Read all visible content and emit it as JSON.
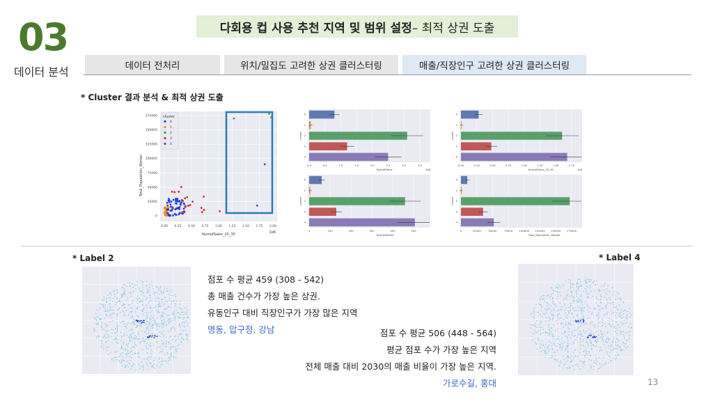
{
  "header": {
    "number": "03",
    "section": "데이터 분석",
    "title_bold": "다회용 컵 사용 추천 지역 및 범위 설정",
    "title_rest": " – 최적 상권 도출"
  },
  "tabs": [
    {
      "label": "데이터 전처리"
    },
    {
      "label": "위치/밀집도 고려한 상권 클러스터링"
    },
    {
      "label": "매출/직장인구 고려한 상권 클러스터링"
    }
  ],
  "subtitle": "* Cluster 결과 분석 & 최적 상권 도출",
  "colors": {
    "c0": "#1f3fd9",
    "c1": "#f28a1c",
    "c2": "#2ea42e",
    "c3": "#d62424",
    "c4": "#5b3fb5",
    "highlight": "#2a7ab5"
  },
  "bar_colors": [
    "#5f79b0",
    "#d98a4a",
    "#5aa06a",
    "#c15858",
    "#8a7ab8"
  ],
  "scatter": {
    "legend_title": "cluster",
    "legend_items": [
      "0",
      "1",
      "2",
      "3",
      "4"
    ],
    "ylabel": "Total_Population_Worker",
    "xlabel": "NumofSales_20_30",
    "offset": "1e6",
    "yticks": [
      "175000",
      "150000",
      "125000",
      "100000",
      "75000",
      "50000",
      "25000",
      "0"
    ],
    "xticks": [
      "0.00",
      "0.25",
      "0.50",
      "0.75",
      "1.00",
      "1.25",
      "1.50",
      "1.75",
      "2.00"
    ]
  },
  "bars": [
    {
      "xlabel": "NumofSales",
      "offset": "1e8",
      "xticks": [
        "0.0",
        "0.5",
        "1.0",
        "1.5",
        "2.0",
        "2.5",
        "3.0",
        "3.5"
      ],
      "values": [
        0.8,
        0.05,
        3.1,
        1.2,
        2.5
      ],
      "xmax": 3.7
    },
    {
      "xlabel": "NumofSales_20_30",
      "offset": "1e6",
      "xticks": [
        "0.00",
        "0.25",
        "0.50",
        "0.75",
        "1.00",
        "1.25",
        "1.50",
        "1.75"
      ],
      "values": [
        0.28,
        0.01,
        1.6,
        0.48,
        1.68
      ],
      "xmax": 1.85
    },
    {
      "xlabel": "NumofStores",
      "offset": "",
      "xticks": [
        "0",
        "100",
        "200",
        "300",
        "400",
        "500"
      ],
      "values": [
        60,
        5,
        459,
        130,
        506
      ],
      "xmax": 560
    },
    {
      "xlabel": "Total_Population_Worker",
      "offset": "",
      "xticks": [
        "0",
        "25000",
        "50000",
        "75000",
        "100000",
        "125000",
        "150000",
        "175000"
      ],
      "values": [
        10000,
        300,
        172000,
        35000,
        52000
      ],
      "xmax": 185000
    }
  ],
  "label2": {
    "title": "* Label 2",
    "lines": [
      "점포 수 평균 459 (308 - 542)",
      "총 매출 건수가 가장 높은 상권.",
      "유동인구 대비 직장인구가 가장 많은 지역"
    ],
    "places": "명동, 압구정, 강남"
  },
  "label4": {
    "title": "* Label 4",
    "lines": [
      "점포 수 평균 506 (448 - 564)",
      "평균 점포 수가 가장 높은 지역",
      "전체 매출 대비 2030의 매출 비율이 가장 높은 지역."
    ],
    "places": "가로수길, 홍대"
  },
  "page_number": "13"
}
